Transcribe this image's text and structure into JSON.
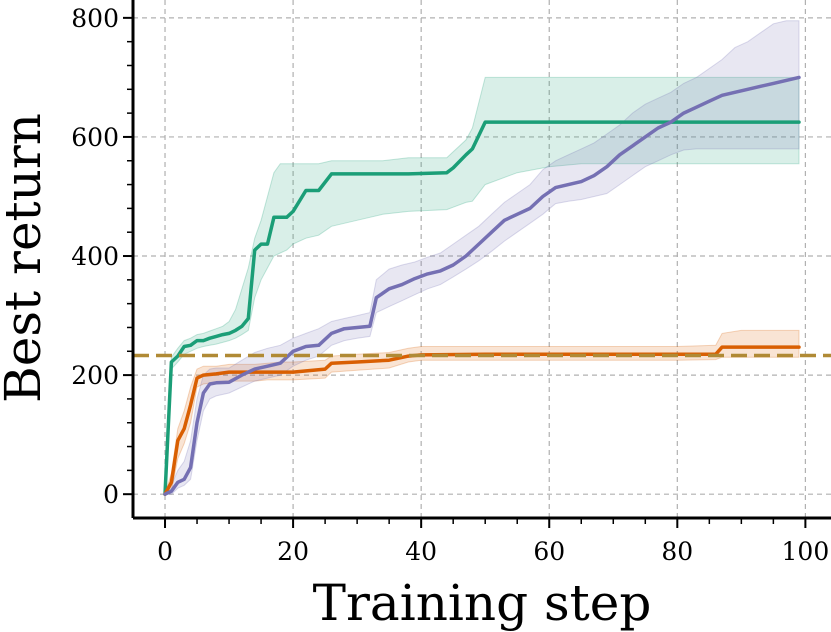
{
  "chart_data": {
    "type": "line",
    "xlabel": "Training step",
    "ylabel": "Best return",
    "xlim": [
      -5,
      104
    ],
    "ylim": [
      -40,
      830
    ],
    "xticks": [
      0,
      20,
      40,
      60,
      80,
      100
    ],
    "yticks": [
      0,
      200,
      400,
      600,
      800
    ],
    "xtick_labels": [
      "0",
      "20",
      "40",
      "60",
      "80",
      "100"
    ],
    "ytick_labels": [
      "0",
      "200",
      "400",
      "600",
      "800"
    ],
    "grid": true,
    "reference_line": {
      "y": 233,
      "style": "dashed",
      "color": "#b08a35"
    },
    "series": [
      {
        "color": "#1b9e77",
        "x": [
          0,
          1,
          2,
          3,
          4,
          5,
          6,
          7,
          8,
          9,
          10,
          11,
          12,
          13,
          14,
          15,
          16,
          17,
          18,
          19,
          20,
          22,
          24,
          26,
          30,
          34,
          38,
          44,
          45,
          47,
          48,
          50,
          55,
          60,
          65,
          70,
          75,
          80,
          85,
          90,
          95,
          99
        ],
        "y": [
          0,
          222,
          232,
          248,
          250,
          258,
          258,
          262,
          265,
          268,
          270,
          275,
          282,
          295,
          410,
          420,
          420,
          465,
          465,
          465,
          475,
          510,
          510,
          538,
          538,
          538,
          538,
          540,
          548,
          570,
          580,
          625,
          625,
          625,
          625,
          625,
          625,
          625,
          625,
          625,
          625,
          625
        ],
        "upper": [
          0,
          230,
          245,
          258,
          262,
          268,
          270,
          274,
          278,
          282,
          290,
          310,
          345,
          380,
          430,
          460,
          500,
          540,
          555,
          555,
          555,
          555,
          555,
          560,
          560,
          560,
          565,
          565,
          575,
          595,
          615,
          700,
          700,
          700,
          700,
          700,
          700,
          700,
          700,
          700,
          700,
          700
        ],
        "lower": [
          0,
          210,
          222,
          235,
          240,
          245,
          248,
          250,
          252,
          255,
          258,
          262,
          268,
          275,
          330,
          360,
          380,
          400,
          405,
          410,
          420,
          430,
          435,
          450,
          460,
          470,
          475,
          478,
          482,
          490,
          492,
          520,
          540,
          550,
          555,
          555,
          555,
          555,
          555,
          555,
          555,
          555
        ]
      },
      {
        "color": "#d95f02",
        "x": [
          0,
          1,
          2,
          3,
          4,
          5,
          6,
          8,
          10,
          12,
          14,
          16,
          18,
          20,
          25,
          26,
          30,
          35,
          38,
          40,
          50,
          60,
          70,
          80,
          86,
          87,
          90,
          95,
          99
        ],
        "y": [
          0,
          20,
          90,
          110,
          150,
          195,
          200,
          202,
          205,
          205,
          205,
          205,
          205,
          205,
          210,
          220,
          222,
          225,
          232,
          234,
          235,
          235,
          235,
          235,
          235,
          247,
          247,
          247,
          247
        ],
        "upper": [
          0,
          35,
          110,
          140,
          180,
          210,
          215,
          215,
          218,
          218,
          218,
          220,
          222,
          222,
          225,
          232,
          235,
          238,
          245,
          248,
          248,
          248,
          248,
          248,
          250,
          270,
          275,
          275,
          275
        ],
        "lower": [
          0,
          5,
          60,
          85,
          120,
          180,
          185,
          188,
          190,
          190,
          190,
          192,
          192,
          192,
          195,
          205,
          208,
          212,
          222,
          225,
          225,
          225,
          225,
          225,
          226,
          230,
          230,
          230,
          230
        ]
      },
      {
        "color": "#7570b3",
        "x": [
          0,
          1,
          2,
          3,
          4,
          5,
          6,
          7,
          8,
          10,
          12,
          14,
          16,
          18,
          20,
          22,
          24,
          26,
          28,
          30,
          32,
          33,
          35,
          37,
          39,
          41,
          43,
          45,
          47,
          49,
          51,
          53,
          55,
          57,
          59,
          61,
          63,
          65,
          67,
          69,
          71,
          73,
          75,
          77,
          79,
          81,
          83,
          85,
          87,
          89,
          91,
          93,
          95,
          97,
          99
        ],
        "y": [
          0,
          5,
          20,
          25,
          45,
          120,
          170,
          185,
          187,
          188,
          200,
          210,
          215,
          220,
          240,
          248,
          250,
          270,
          278,
          280,
          282,
          330,
          345,
          352,
          362,
          370,
          375,
          385,
          400,
          420,
          440,
          460,
          470,
          480,
          500,
          515,
          520,
          525,
          535,
          550,
          570,
          585,
          600,
          615,
          625,
          640,
          650,
          660,
          670,
          675,
          680,
          685,
          690,
          695,
          700
        ],
        "upper": [
          0,
          15,
          40,
          55,
          90,
          160,
          200,
          210,
          212,
          212,
          225,
          238,
          245,
          250,
          262,
          270,
          278,
          290,
          295,
          300,
          305,
          360,
          378,
          385,
          390,
          398,
          405,
          420,
          435,
          450,
          470,
          490,
          505,
          520,
          545,
          560,
          570,
          580,
          590,
          605,
          620,
          640,
          655,
          665,
          675,
          690,
          700,
          715,
          730,
          750,
          760,
          775,
          790,
          795,
          795
        ],
        "lower": [
          0,
          0,
          10,
          15,
          25,
          90,
          140,
          160,
          165,
          170,
          180,
          190,
          195,
          200,
          215,
          225,
          232,
          250,
          258,
          262,
          265,
          305,
          315,
          325,
          335,
          345,
          352,
          365,
          378,
          392,
          408,
          425,
          440,
          455,
          470,
          488,
          492,
          495,
          500,
          505,
          520,
          535,
          550,
          560,
          570,
          578,
          580,
          580,
          580,
          580,
          580,
          580,
          580,
          580,
          580
        ]
      }
    ]
  }
}
